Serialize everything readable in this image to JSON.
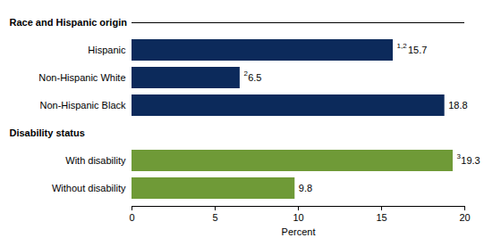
{
  "chart_data": {
    "type": "bar",
    "orientation": "horizontal",
    "xlabel": "Percent",
    "xlim": [
      0,
      20
    ],
    "xticks": [
      0,
      5,
      10,
      15,
      20
    ],
    "data_labels": true,
    "series": [
      {
        "name": "Race and Hispanic origin",
        "color": "#0c2a5b",
        "categories": [
          "Hispanic",
          "Non-Hispanic White",
          "Non-Hispanic Black"
        ],
        "values": [
          15.7,
          6.5,
          18.8
        ],
        "value_notes": [
          "1,2",
          "2",
          null
        ]
      },
      {
        "name": "Disability status",
        "color": "#6f9a37",
        "categories": [
          "With disability",
          "Without disability"
        ],
        "values": [
          19.3,
          9.8
        ],
        "value_notes": [
          "3",
          null
        ]
      }
    ]
  }
}
